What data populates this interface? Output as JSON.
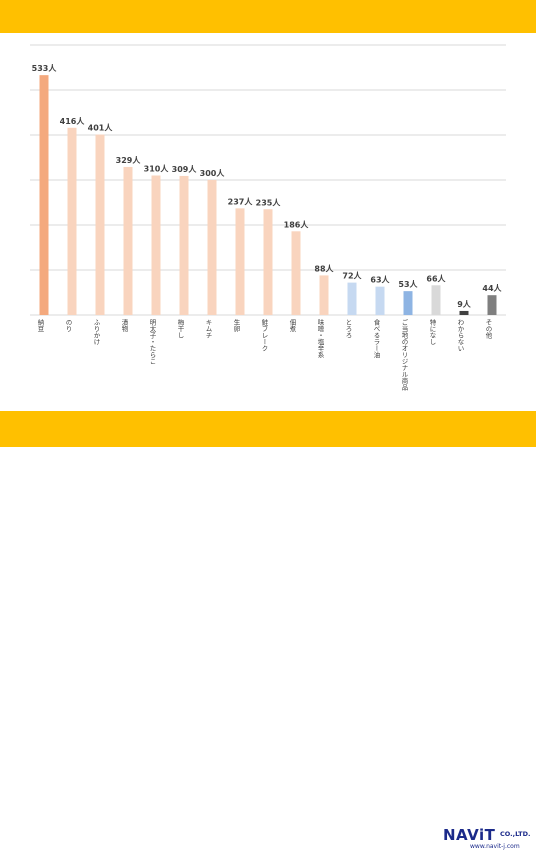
{
  "branding": {
    "name": "NAViT",
    "suffix": "CO.,LTD.",
    "url": "www.navit-j.com"
  },
  "chart_data": {
    "type": "bar",
    "title": "",
    "xlabel": "",
    "ylabel": "",
    "ylim": [
      0,
      600
    ],
    "grid": true,
    "value_suffix": "人",
    "categories": [
      "納豆",
      "のり",
      "ふりかけ",
      "漬物",
      "明太子・たらこ",
      "梅干し",
      "キムチ",
      "生卵",
      "鮭フレーク",
      "佃煮",
      "味噌・塩辛系",
      "とろろ",
      "食べるラー油",
      "ご当地のオリジナル商品",
      "特になし",
      "わからない",
      "その他"
    ],
    "values": [
      533,
      416,
      401,
      329,
      310,
      309,
      300,
      237,
      235,
      186,
      88,
      72,
      63,
      53,
      66,
      9,
      44
    ],
    "value_labels": [
      "533人",
      "416人",
      "401人",
      "329人",
      "310人",
      "309人",
      "300人",
      "237人",
      "235人",
      "186人",
      "88人",
      "72人",
      "63人",
      "53人",
      "66人",
      "9人",
      "44人"
    ],
    "colors": [
      "#f4a97e",
      "#f9d4be",
      "#f9d4be",
      "#f9d4be",
      "#f9d4be",
      "#f9d4be",
      "#f9d4be",
      "#f9d4be",
      "#f9d4be",
      "#f9d4be",
      "#f9d4be",
      "#c6d9f1",
      "#c6d9f1",
      "#8eb4e3",
      "#d9d9d9",
      "#404040",
      "#7f7f7f"
    ],
    "gridline_color": "#d9d9d9"
  }
}
